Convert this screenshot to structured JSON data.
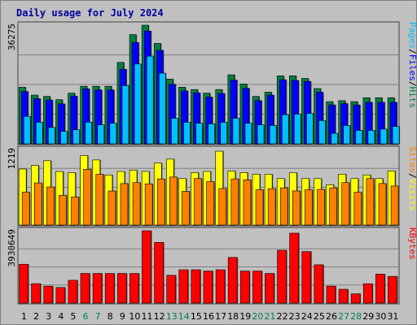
{
  "chart_data": {
    "type": "bar",
    "title": "Daily usage for July 2024",
    "weekend_days": [
      6,
      7,
      13,
      14,
      20,
      21,
      27,
      28
    ],
    "colors": {
      "title": "#0000a0",
      "hits": "#008040",
      "files": "#0000ff",
      "pages": "#00c0ff",
      "visits": "#ffff00",
      "sites": "#ff8000",
      "kbytes": "#ff0000",
      "weekday_label": "#000000",
      "weekend_label": "#00805c"
    },
    "panels": [
      {
        "id": "top",
        "max_label": "36275",
        "max": 36275,
        "right_labels": [
          {
            "text": "Pages",
            "color": "#00c0ff"
          },
          {
            "text": "/",
            "color": "#000000"
          },
          {
            "text": "Files",
            "color": "#0000ff"
          },
          {
            "text": "/",
            "color": "#000000"
          },
          {
            "text": "Hits",
            "color": "#008040"
          }
        ],
        "series": [
          {
            "name": "Hits",
            "color": "#008040",
            "values": [
              17300,
              14900,
              14500,
              13500,
              15500,
              17600,
              17600,
              17600,
              24900,
              33400,
              36275,
              30700,
              19800,
              17300,
              16600,
              15500,
              16600,
              21100,
              18300,
              14500,
              15800,
              20800,
              20800,
              20000,
              16900,
              12900,
              13200,
              12900,
              14100,
              14100,
              14100
            ]
          },
          {
            "name": "Files",
            "color": "#0000ff",
            "values": [
              16000,
              13800,
              13400,
              12200,
              14600,
              16800,
              16500,
              16500,
              22800,
              31000,
              34500,
              28600,
              18200,
              16200,
              15600,
              14300,
              15400,
              19500,
              17000,
              13200,
              14900,
              19600,
              19400,
              19100,
              15800,
              11900,
              12300,
              11900,
              12700,
              12700,
              12700
            ]
          },
          {
            "name": "Pages",
            "color": "#00c0ff",
            "values": [
              8400,
              6600,
              5000,
              3800,
              4300,
              6600,
              5800,
              6300,
              17800,
              24400,
              26800,
              21600,
              7800,
              6600,
              6300,
              6100,
              6600,
              7800,
              6300,
              5800,
              5600,
              8900,
              9100,
              9300,
              7100,
              3200,
              5600,
              4100,
              4100,
              4500,
              5300
            ]
          }
        ]
      },
      {
        "id": "middle",
        "max_label": "1219",
        "max": 1219,
        "right_labels": [
          {
            "text": "Sites",
            "color": "#ff8000"
          },
          {
            "text": "/",
            "color": "#000000"
          },
          {
            "text": "Visits",
            "color": "#ffff00"
          }
        ],
        "series": [
          {
            "name": "Visits",
            "color": "#ffff00",
            "values": [
              904,
              961,
              1038,
              865,
              846,
              1122,
              1050,
              808,
              865,
              884,
              865,
              1000,
              1064,
              750,
              846,
              865,
              1192,
              871,
              846,
              820,
              820,
              750,
              845,
              750,
              750,
              650,
              820,
              750,
              808,
              750,
              873
            ]
          },
          {
            "name": "Sites",
            "color": "#ff8000",
            "values": [
              530,
              680,
              615,
              480,
              455,
              900,
              820,
              550,
              670,
              685,
              665,
              745,
              775,
              545,
              751,
              700,
              589,
              745,
              730,
              570,
              586,
              600,
              551,
              570,
              575,
              600,
              685,
              530,
              750,
              670,
              630
            ]
          }
        ]
      },
      {
        "id": "bottom",
        "max_label": "3930649",
        "max": 3930649,
        "right_labels": [
          {
            "text": "KBytes",
            "color": "#ff0000"
          }
        ],
        "series": [
          {
            "name": "KBytes",
            "color": "#ff0000",
            "values": [
              2110000,
              1054000,
              920000,
              845000,
              1240000,
              1610000,
              1610000,
              1610000,
              1610000,
              1610000,
              3930649,
              3300000,
              1510000,
              1810000,
              1810000,
              1740000,
              1810000,
              2480000,
              1740000,
              1740000,
              1610000,
              2870000,
              3800000,
              2800000,
              2080000,
              920000,
              750000,
              500000,
              1050000,
              1570000,
              1450000
            ]
          }
        ]
      }
    ],
    "x": [
      1,
      2,
      3,
      4,
      5,
      6,
      7,
      8,
      9,
      10,
      11,
      12,
      13,
      14,
      15,
      16,
      17,
      18,
      19,
      20,
      21,
      22,
      23,
      24,
      25,
      26,
      27,
      28,
      29,
      30,
      31
    ]
  }
}
